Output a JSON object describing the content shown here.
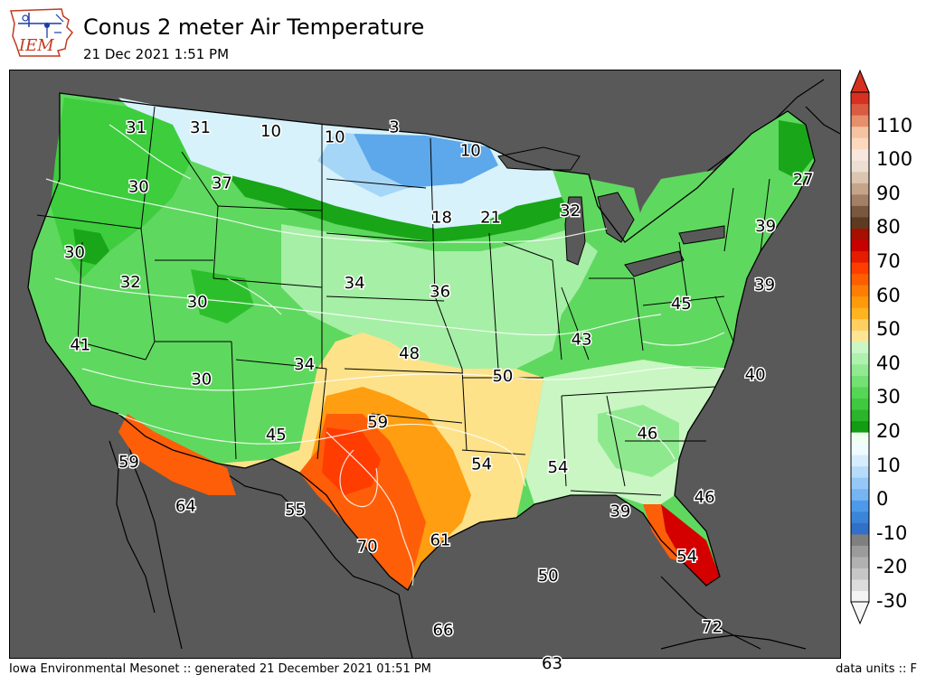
{
  "header": {
    "logo_text": "IEM",
    "title": "Conus 2 meter Air Temperature",
    "subtitle": "21 Dec 2021 1:51 PM"
  },
  "footer": {
    "credit": "Iowa Environmental Mesonet :: generated 21 December 2021 01:51 PM",
    "units": "data units :: F"
  },
  "colors": {
    "ocean": "#595959",
    "land_white": "#f2fdff",
    "cold_blue": "#5da8ea",
    "green_dark": "#19a719",
    "green_mid": "#3dcd3d",
    "green_light": "#87eb87",
    "pale_green": "#c9f6c2",
    "yellow": "#fde28a",
    "orange": "#ff9e10",
    "red_orange": "#ff5e09",
    "deep_red": "#d40000"
  },
  "colorbar": {
    "labels": [
      "110",
      "100",
      "90",
      "80",
      "70",
      "60",
      "50",
      "40",
      "30",
      "20",
      "10",
      "0",
      "-10",
      "-20",
      "-30"
    ],
    "colors": [
      "#f3f3f3",
      "#dcdcdc",
      "#c6c6c6",
      "#b1b1b1",
      "#9b9b9b",
      "#7f7f7f",
      "#3070c8",
      "#3b85d8",
      "#4d9aea",
      "#75b6f2",
      "#95c8f7",
      "#b7dbfa",
      "#d7edfd",
      "#eefbff",
      "#f0fff0",
      "#129c12",
      "#2ab52a",
      "#3ec93e",
      "#55d655",
      "#73e173",
      "#91ea91",
      "#aff1af",
      "#cbf7c6",
      "#fde595",
      "#ffd05f",
      "#ffb321",
      "#ff9a0a",
      "#ff7d05",
      "#ff5e00",
      "#ff3d00",
      "#e61c00",
      "#c90000",
      "#a70f00",
      "#5e3a20",
      "#7a5840",
      "#a38065",
      "#c4a58a",
      "#dcc5b0",
      "#ecdfd2",
      "#f7e7dd",
      "#fcd8bd",
      "#f5c3a1",
      "#e78e6b",
      "#db5b42",
      "#d73020"
    ],
    "min": -30,
    "max": 120,
    "step": 5
  },
  "map_labels": [
    {
      "text": "31",
      "lon": -122.3,
      "lat": 47.6
    },
    {
      "text": "31",
      "lon": -117.2,
      "lat": 47.9
    },
    {
      "text": "10",
      "lon": -111.5,
      "lat": 48.0
    },
    {
      "text": "10",
      "lon": -106.3,
      "lat": 47.9
    },
    {
      "text": "3",
      "lon": -101.5,
      "lat": 48.4
    },
    {
      "text": "10",
      "lon": -95.3,
      "lat": 47.4
    },
    {
      "text": "27",
      "lon": -69.3,
      "lat": 45.2
    },
    {
      "text": "30",
      "lon": -121.3,
      "lat": 45.1
    },
    {
      "text": "37",
      "lon": -114.9,
      "lat": 45.6
    },
    {
      "text": "18",
      "lon": -97.6,
      "lat": 44.5
    },
    {
      "text": "21",
      "lon": -93.8,
      "lat": 44.5
    },
    {
      "text": "32",
      "lon": -87.6,
      "lat": 44.7
    },
    {
      "text": "39",
      "lon": -72.8,
      "lat": 43.4
    },
    {
      "text": "30",
      "lon": -125.2,
      "lat": 42.0
    },
    {
      "text": "32",
      "lon": -120.7,
      "lat": 41.0
    },
    {
      "text": "34",
      "lon": -104.1,
      "lat": 41.6
    },
    {
      "text": "36",
      "lon": -97.7,
      "lat": 41.3
    },
    {
      "text": "30",
      "lon": -115.6,
      "lat": 40.4
    },
    {
      "text": "39",
      "lon": -73.6,
      "lat": 40.9
    },
    {
      "text": "45",
      "lon": -79.9,
      "lat": 40.4
    },
    {
      "text": "43",
      "lon": -87.4,
      "lat": 39.1
    },
    {
      "text": "41",
      "lon": -123.5,
      "lat": 38.1
    },
    {
      "text": "48",
      "lon": -99.9,
      "lat": 38.6
    },
    {
      "text": "34",
      "lon": -107.4,
      "lat": 38.0
    },
    {
      "text": "30",
      "lon": -114.6,
      "lat": 37.1
    },
    {
      "text": "50",
      "lon": -93.2,
      "lat": 37.6
    },
    {
      "text": "40",
      "lon": -75.3,
      "lat": 37.1
    },
    {
      "text": "59",
      "lon": -102.0,
      "lat": 35.6
    },
    {
      "text": "45",
      "lon": -109.0,
      "lat": 34.9
    },
    {
      "text": "46",
      "lon": -83.3,
      "lat": 34.9
    },
    {
      "text": "59",
      "lon": -118.8,
      "lat": 33.3
    },
    {
      "text": "54",
      "lon": -94.8,
      "lat": 33.8
    },
    {
      "text": "54",
      "lon": -89.6,
      "lat": 33.6
    },
    {
      "text": "64",
      "lon": -114.6,
      "lat": 31.6
    },
    {
      "text": "55",
      "lon": -107.3,
      "lat": 31.7
    },
    {
      "text": "39",
      "lon": -85.6,
      "lat": 31.6
    },
    {
      "text": "46",
      "lon": -79.9,
      "lat": 32.0
    },
    {
      "text": "70",
      "lon": -102.4,
      "lat": 30.2
    },
    {
      "text": "61",
      "lon": -97.6,
      "lat": 30.5
    },
    {
      "text": "54",
      "lon": -81.5,
      "lat": 29.5
    },
    {
      "text": "50",
      "lon": -90.6,
      "lat": 28.9
    },
    {
      "text": "66",
      "lon": -97.4,
      "lat": 26.6
    },
    {
      "text": "72",
      "lon": -80.4,
      "lat": 26.4
    },
    {
      "text": "63",
      "lon": -90.6,
      "lat": 25.1
    }
  ]
}
